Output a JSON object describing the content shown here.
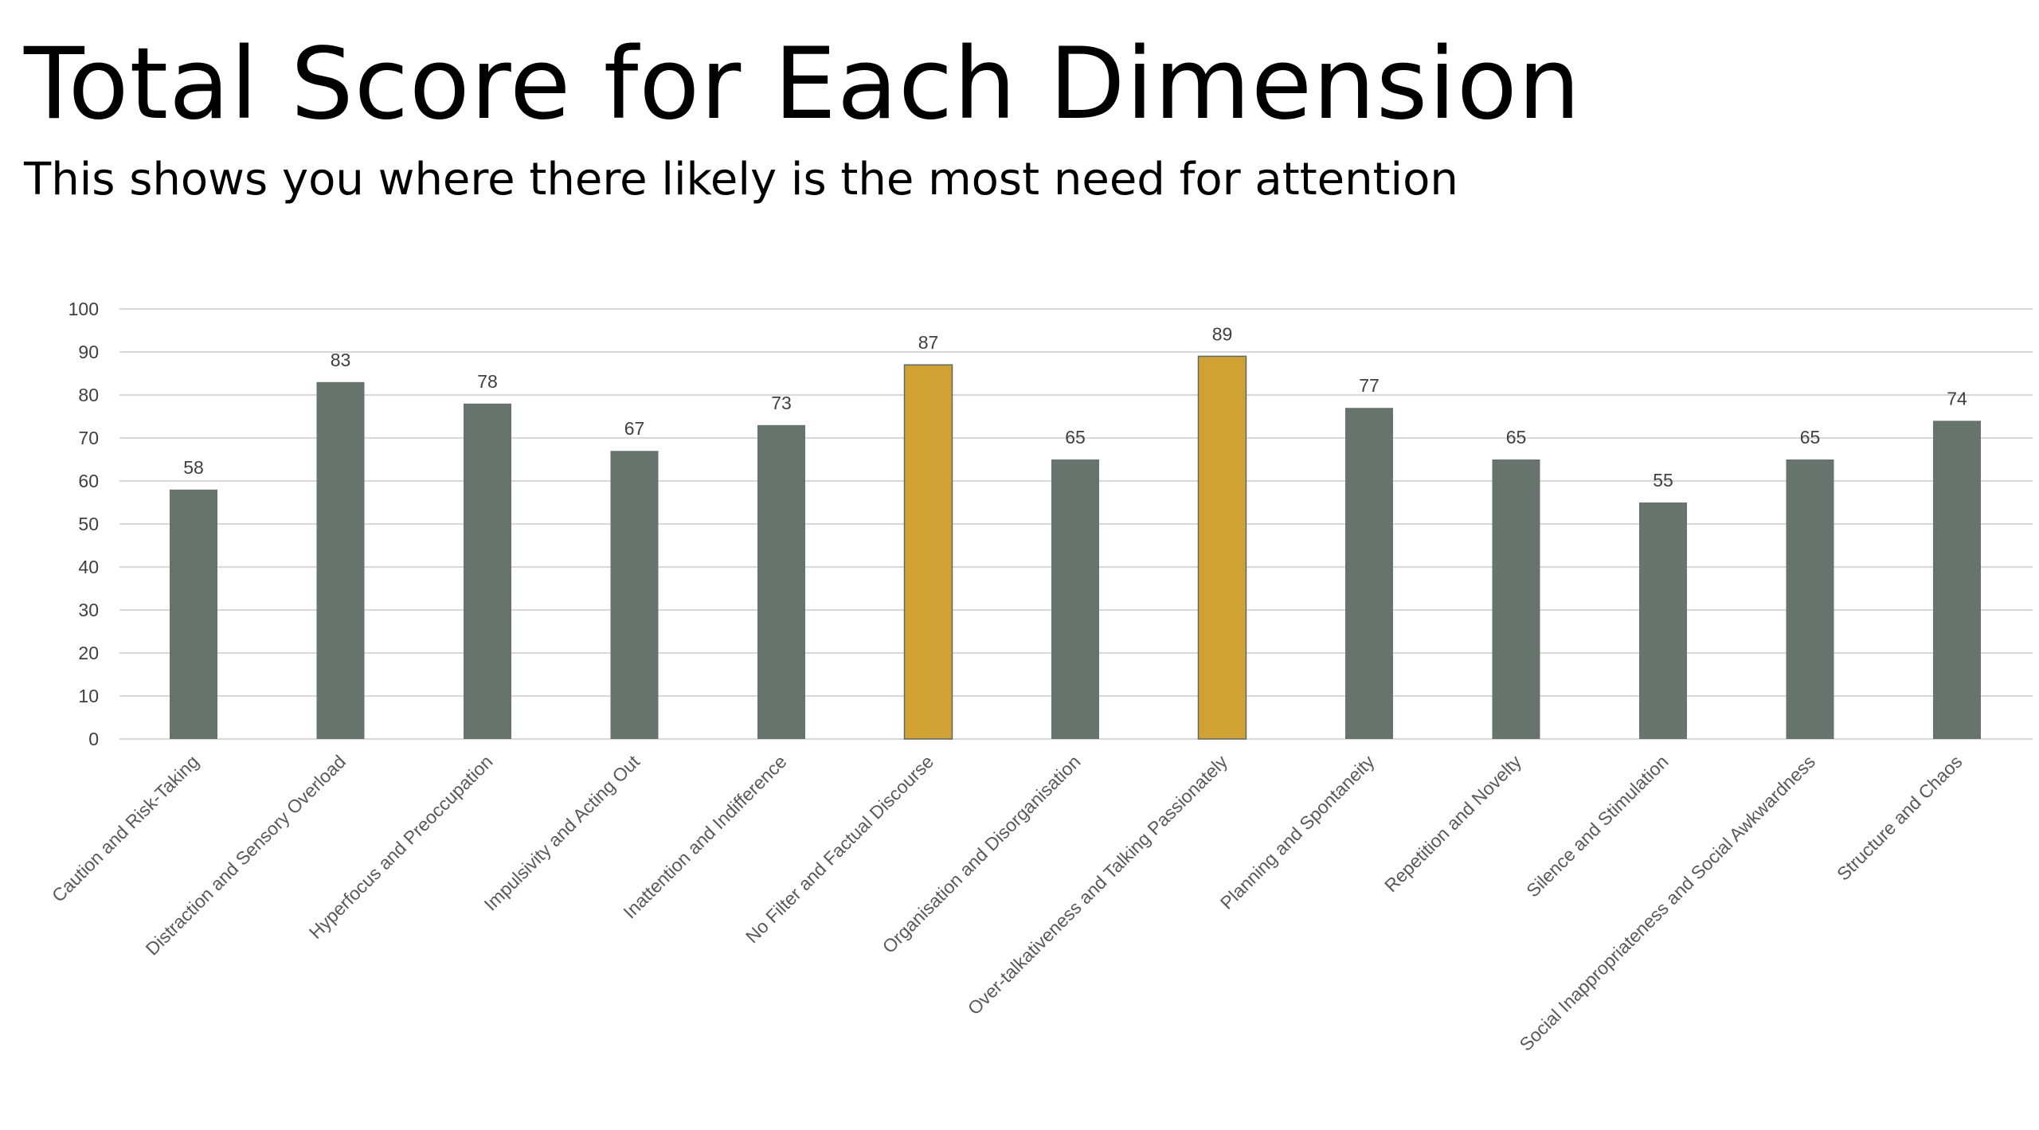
{
  "header": {
    "title": "Total Score for Each Dimension",
    "subtitle": "This shows you where there likely is the most need for attention"
  },
  "colors": {
    "default_bar": "#66746d",
    "highlight_bar": "#d0a234",
    "gridline": "#d9d9d9",
    "axis_text": "#404040"
  },
  "chart_data": {
    "type": "bar",
    "title": "Total Score for Each Dimension",
    "subtitle": "This shows you where there likely is the most need for attention",
    "xlabel": "",
    "ylabel": "",
    "ylim": [
      0,
      100
    ],
    "ytick_step": 10,
    "grid": true,
    "legend": "none",
    "categories": [
      "Caution and Risk-Taking",
      "Distraction and Sensory Overload",
      "Hyperfocus and Preoccupation",
      "Impulsivity and Acting Out",
      "Inattention and Indifference",
      "No Filter and Factual Discourse",
      "Organisation and Disorganisation",
      "Over-talkativeness and Talking Passionately",
      "Planning and Spontaneity",
      "Repetition and Novelty",
      "Silence and Stimulation",
      "Social Inappropriateness and Social Awkwardness",
      "Structure and Chaos"
    ],
    "values": [
      58,
      83,
      78,
      67,
      73,
      87,
      65,
      89,
      77,
      65,
      55,
      65,
      74
    ],
    "highlighted": [
      "No Filter and Factual Discourse",
      "Over-talkativeness and Talking Passionately"
    ]
  }
}
